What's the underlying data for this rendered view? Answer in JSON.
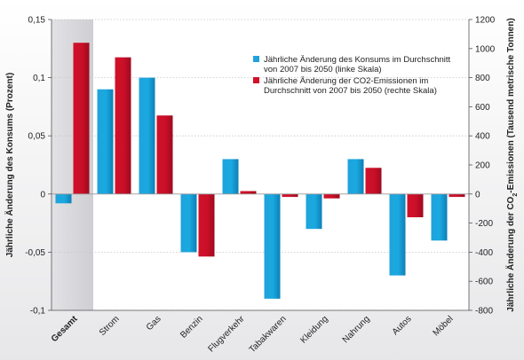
{
  "chart_data": {
    "type": "bar",
    "categories": [
      "Gesamt",
      "Strom",
      "Gas",
      "Benzin",
      "Flugverkehr",
      "Tabakwaren",
      "Kleidung",
      "Nahrung",
      "Autos",
      "Möbel"
    ],
    "highlight_category": "Gesamt",
    "series": [
      {
        "name": "Jährliche Änderung des Konsums im Durchschnitt von 2007 bis 2050 (linke Skala)",
        "legend_lines": [
          "Jährliche Änderung des Konsums im Durchschnitt",
          "von 2007 bis 2050 (linke Skala)"
        ],
        "axis": "left",
        "color": "#1fa3dc",
        "values": [
          -0.008,
          0.09,
          0.1,
          -0.05,
          0.03,
          -0.09,
          -0.03,
          0.03,
          -0.07,
          -0.04
        ]
      },
      {
        "name": "Jährliche Änderung der CO2-Emissionen im Durchschnitt von 2007 bis 2050 (rechte Skala)",
        "legend_lines": [
          "Jährliche Änderung der CO2-Emissionen im",
          "Durchschnitt von 2007 bis 2050 (rechte Skala)"
        ],
        "axis": "right",
        "color": "#d2112a",
        "values": [
          1040,
          940,
          540,
          -430,
          20,
          -20,
          -30,
          180,
          -160,
          -20
        ]
      }
    ],
    "y_left": {
      "label": "Jährliche Änderung des Konsums (Prozent)",
      "ylim": [
        -0.1,
        0.15
      ],
      "ticks": [
        -0.1,
        -0.05,
        0,
        0.05,
        0.1,
        0.15
      ],
      "tick_labels": [
        "-0,1",
        "-0,05",
        "0",
        "0,05",
        "0,1",
        "0,15"
      ]
    },
    "y_right": {
      "label_prefix": "Jährliche Änderung der CO",
      "label_sub": "2",
      "label_suffix": "-Emissionen (Tausend metrische Tonnen)",
      "ylim": [
        -800,
        1200
      ],
      "ticks": [
        -800,
        -600,
        -400,
        -200,
        0,
        200,
        400,
        600,
        800,
        1000,
        1200
      ],
      "tick_labels": [
        "-800",
        "-600",
        "-400",
        "-200",
        "0",
        "200",
        "400",
        "600",
        "800",
        "1000",
        "1200"
      ]
    },
    "grid": true,
    "legend_position": "top-right"
  }
}
